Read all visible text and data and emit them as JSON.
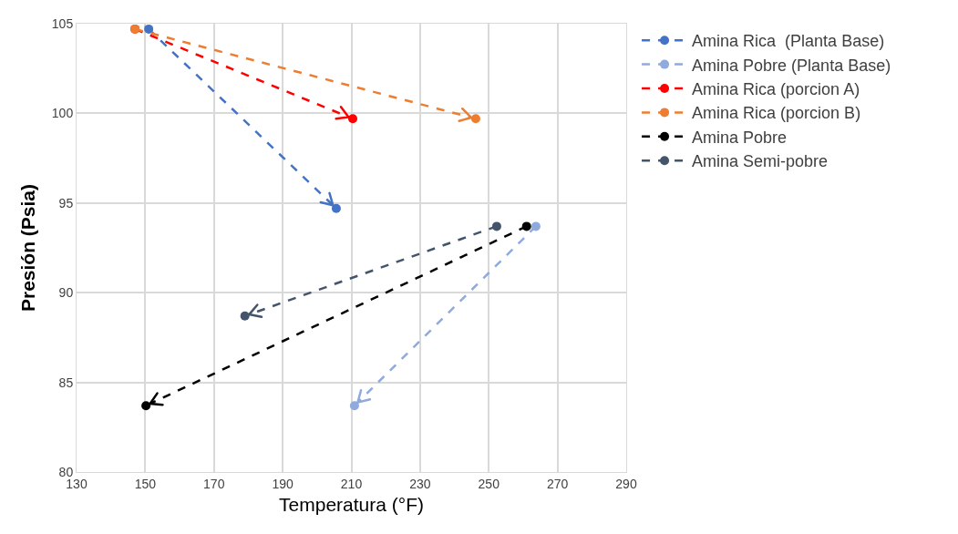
{
  "chart_data": {
    "type": "line",
    "xlabel": "Temperatura (°F)",
    "ylabel": "Presión (Psia)",
    "xlim": [
      130,
      290
    ],
    "xticks": [
      130,
      150,
      170,
      190,
      210,
      230,
      250,
      270,
      290
    ],
    "ylim": [
      80,
      105
    ],
    "yticks": [
      80,
      85,
      90,
      95,
      100,
      105
    ],
    "grid": true,
    "legend": "top right",
    "marker": "circle",
    "line_style": "dashed",
    "series": [
      {
        "name": "Amina Rica  (Planta Base)",
        "color": "#4472c4",
        "x": [
          151,
          205.6
        ],
        "values": [
          104.7,
          94.7
        ]
      },
      {
        "name": "Amina Pobre (Planta Base)",
        "color": "#8faadc",
        "x": [
          263.7,
          210.9
        ],
        "values": [
          93.7,
          83.7
        ]
      },
      {
        "name": "Amina Rica (porcion A)",
        "color": "#ff0000",
        "x": [
          147,
          210.4
        ],
        "values": [
          104.7,
          99.7
        ]
      },
      {
        "name": "Amina Rica (porcion B)",
        "color": "#ed7d31",
        "x": [
          147,
          246.2
        ],
        "values": [
          104.7,
          99.7
        ]
      },
      {
        "name": "Amina Pobre",
        "color": "#000000",
        "x": [
          261,
          150.2
        ],
        "values": [
          93.7,
          83.7
        ]
      },
      {
        "name": "Amina Semi-pobre",
        "color": "#44546a",
        "x": [
          252.3,
          179
        ],
        "values": [
          93.7,
          88.7
        ]
      }
    ]
  }
}
